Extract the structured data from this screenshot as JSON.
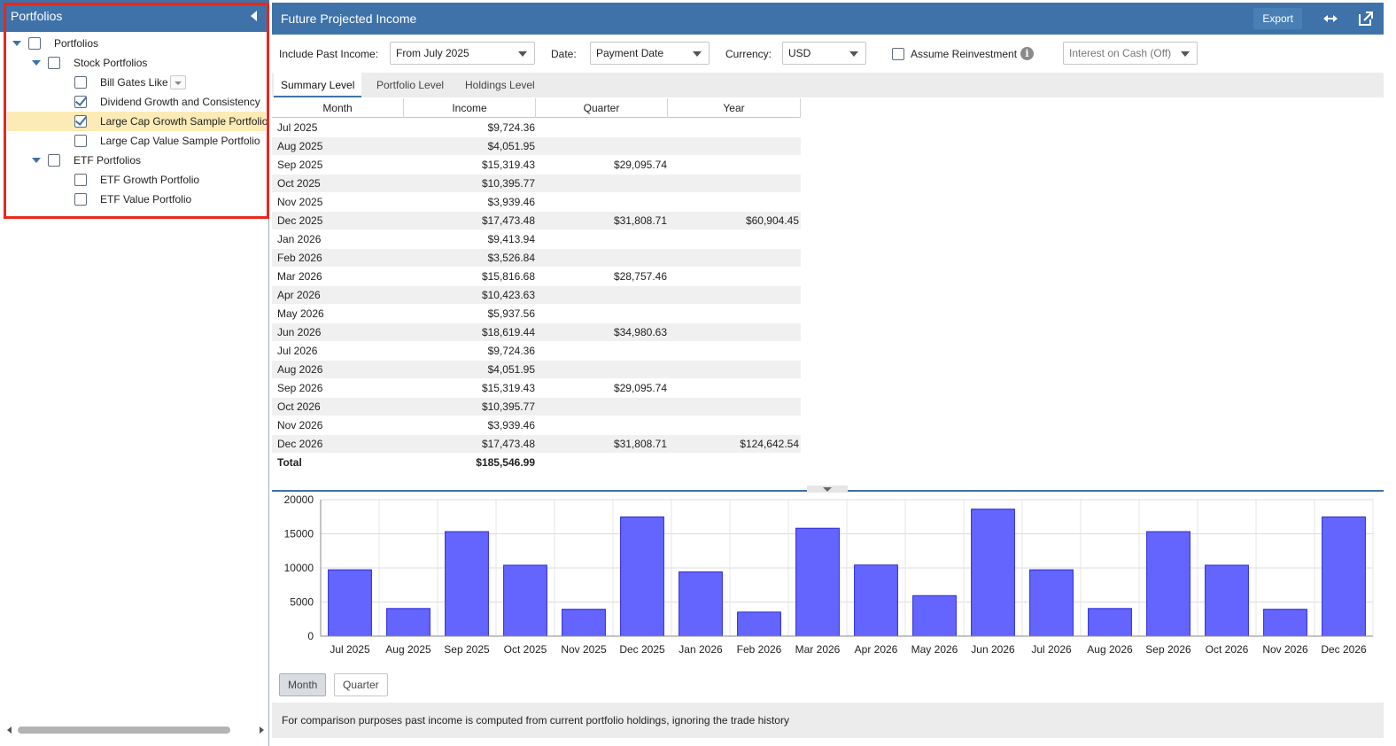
{
  "sidebar": {
    "title": "Portfolios",
    "tree": [
      {
        "label": "Portfolios",
        "level": 0,
        "expandable": true,
        "checked": false,
        "selected": false
      },
      {
        "label": "Stock Portfolios",
        "level": 1,
        "expandable": true,
        "checked": false,
        "selected": false
      },
      {
        "label": "Bill Gates Like",
        "level": 2,
        "expandable": false,
        "checked": false,
        "selected": false,
        "menu": true
      },
      {
        "label": "Dividend Growth and Consistency",
        "level": 2,
        "expandable": false,
        "checked": true,
        "selected": false
      },
      {
        "label": "Large Cap Growth Sample Portfolio",
        "level": 2,
        "expandable": false,
        "checked": true,
        "selected": true
      },
      {
        "label": "Large Cap Value Sample Portfolio",
        "level": 2,
        "expandable": false,
        "checked": false,
        "selected": false
      },
      {
        "label": "ETF Portfolios",
        "level": 1,
        "expandable": true,
        "checked": false,
        "selected": false
      },
      {
        "label": "ETF Growth Portfolio",
        "level": 2,
        "expandable": false,
        "checked": false,
        "selected": false
      },
      {
        "label": "ETF Value Portfolio",
        "level": 2,
        "expandable": false,
        "checked": false,
        "selected": false
      }
    ]
  },
  "header": {
    "title": "Future Projected Income",
    "export_label": "Export"
  },
  "filters": {
    "past_income_label": "Include Past Income:",
    "past_income_value": "From July 2025",
    "date_label": "Date:",
    "date_value": "Payment Date",
    "currency_label": "Currency:",
    "currency_value": "USD",
    "reinvest_label": "Assume Reinvestment",
    "interest_value": "Interest on Cash (Off)"
  },
  "tabs": [
    {
      "label": "Summary Level",
      "active": true
    },
    {
      "label": "Portfolio Level",
      "active": false
    },
    {
      "label": "Holdings Level",
      "active": false
    }
  ],
  "table": {
    "columns": [
      "Month",
      "Income",
      "Quarter",
      "Year"
    ],
    "rows": [
      {
        "month": "Jul 2025",
        "income": "$9,724.36",
        "quarter": "",
        "year": ""
      },
      {
        "month": "Aug 2025",
        "income": "$4,051.95",
        "quarter": "",
        "year": ""
      },
      {
        "month": "Sep 2025",
        "income": "$15,319.43",
        "quarter": "$29,095.74",
        "year": ""
      },
      {
        "month": "Oct 2025",
        "income": "$10,395.77",
        "quarter": "",
        "year": ""
      },
      {
        "month": "Nov 2025",
        "income": "$3,939.46",
        "quarter": "",
        "year": ""
      },
      {
        "month": "Dec 2025",
        "income": "$17,473.48",
        "quarter": "$31,808.71",
        "year": "$60,904.45"
      },
      {
        "month": "Jan 2026",
        "income": "$9,413.94",
        "quarter": "",
        "year": ""
      },
      {
        "month": "Feb 2026",
        "income": "$3,526.84",
        "quarter": "",
        "year": ""
      },
      {
        "month": "Mar 2026",
        "income": "$15,816.68",
        "quarter": "$28,757.46",
        "year": ""
      },
      {
        "month": "Apr 2026",
        "income": "$10,423.63",
        "quarter": "",
        "year": ""
      },
      {
        "month": "May 2026",
        "income": "$5,937.56",
        "quarter": "",
        "year": ""
      },
      {
        "month": "Jun 2026",
        "income": "$18,619.44",
        "quarter": "$34,980.63",
        "year": ""
      },
      {
        "month": "Jul 2026",
        "income": "$9,724.36",
        "quarter": "",
        "year": ""
      },
      {
        "month": "Aug 2026",
        "income": "$4,051.95",
        "quarter": "",
        "year": ""
      },
      {
        "month": "Sep 2026",
        "income": "$15,319.43",
        "quarter": "$29,095.74",
        "year": ""
      },
      {
        "month": "Oct 2026",
        "income": "$10,395.77",
        "quarter": "",
        "year": ""
      },
      {
        "month": "Nov 2026",
        "income": "$3,939.46",
        "quarter": "",
        "year": ""
      },
      {
        "month": "Dec 2026",
        "income": "$17,473.48",
        "quarter": "$31,808.71",
        "year": "$124,642.54"
      }
    ],
    "total_label": "Total",
    "total_income": "$185,546.99"
  },
  "chart_data": {
    "type": "bar",
    "categories": [
      "Jul 2025",
      "Aug 2025",
      "Sep 2025",
      "Oct 2025",
      "Nov 2025",
      "Dec 2025",
      "Jan 2026",
      "Feb 2026",
      "Mar 2026",
      "Apr 2026",
      "May 2026",
      "Jun 2026",
      "Jul 2026",
      "Aug 2026",
      "Sep 2026",
      "Oct 2026",
      "Nov 2026",
      "Dec 2026"
    ],
    "values": [
      9724.36,
      4051.95,
      15319.43,
      10395.77,
      3939.46,
      17473.48,
      9413.94,
      3526.84,
      15816.68,
      10423.63,
      5937.56,
      18619.44,
      9724.36,
      4051.95,
      15319.43,
      10395.77,
      3939.46,
      17473.48
    ],
    "yticks": [
      "0",
      "5000",
      "10000",
      "15000",
      "20000"
    ],
    "ylim": [
      0,
      20000
    ],
    "grid": true,
    "bar_color": "#6464ff",
    "bar_border": "#2b2bd6"
  },
  "granularity": [
    {
      "label": "Month",
      "active": true
    },
    {
      "label": "Quarter",
      "active": false
    }
  ],
  "footnote": "For comparison purposes past income is computed from current portfolio holdings, ignoring the trade history",
  "colors": {
    "header_bg": "#3e72a8",
    "highlight_frame": "#e8271d",
    "selected_row": "#fcebb6"
  }
}
